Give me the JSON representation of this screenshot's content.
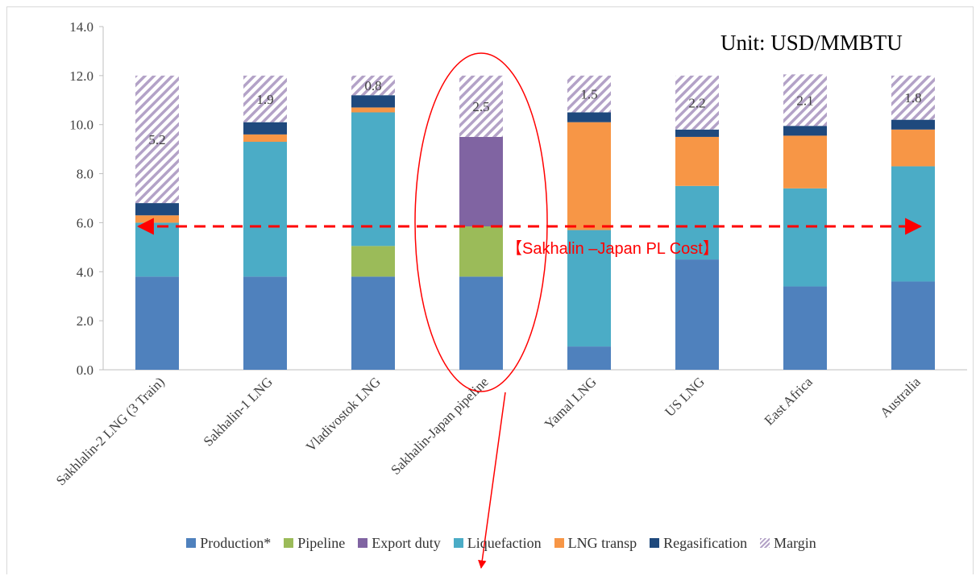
{
  "chart_data": {
    "type": "bar",
    "stacked": true,
    "categories": [
      "Sakhlalin-2 LNG (3 Train)",
      "Sakhalin-1 LNG",
      "Vladivostok LNG",
      "Sakhalin-Japan pipeline",
      "Yamal LNG",
      "US LNG",
      "East Africa",
      "Australia"
    ],
    "series": [
      {
        "name": "Production*",
        "color": "#4f81bd",
        "values": [
          3.8,
          3.8,
          3.8,
          3.8,
          0.95,
          4.5,
          3.4,
          3.6
        ]
      },
      {
        "name": "Pipeline",
        "color": "#9bbb59",
        "values": [
          0,
          0,
          1.25,
          2.05,
          0,
          0,
          0,
          0
        ]
      },
      {
        "name": "Export duty",
        "color": "#8064a2",
        "values": [
          0,
          0,
          0,
          3.65,
          0,
          0,
          0,
          0
        ]
      },
      {
        "name": "Liquefaction",
        "color": "#4bacc6",
        "values": [
          2.2,
          5.5,
          5.45,
          0,
          4.75,
          3.0,
          4.0,
          4.7
        ]
      },
      {
        "name": "LNG transp",
        "color": "#f79646",
        "values": [
          0.3,
          0.3,
          0.2,
          0,
          4.4,
          2.0,
          2.15,
          1.5
        ]
      },
      {
        "name": "Regasification",
        "color": "#1f497d",
        "values": [
          0.5,
          0.5,
          0.5,
          0,
          0.4,
          0.3,
          0.4,
          0.4
        ]
      },
      {
        "name": "Margin",
        "color": "#b3a2c7",
        "pattern": "diagonal-hatch",
        "values": [
          5.2,
          1.9,
          0.8,
          2.5,
          1.5,
          2.2,
          2.1,
          1.8
        ]
      }
    ],
    "data_labels": {
      "series": "Margin",
      "labels": [
        "5.2",
        "1.9",
        "0.8",
        "2.5",
        "1.5",
        "2.2",
        "2.1",
        "1.8"
      ]
    },
    "ylim": [
      0,
      14
    ],
    "yticks": [
      "0.0",
      "2.0",
      "4.0",
      "6.0",
      "8.0",
      "10.0",
      "12.0",
      "14.0"
    ],
    "grid": false,
    "legend": "bottom",
    "title": "",
    "xlabel": "",
    "ylabel": "",
    "reference_line": {
      "value": 5.85,
      "label": "【Sakhalin –Japan PL Cost】",
      "color": "#ff0000",
      "style": "dashed double-arrow"
    },
    "highlight": {
      "category": "Sakhalin-Japan pipeline",
      "shape": "ellipse",
      "color": "#ff0000",
      "arrow": "down"
    }
  },
  "annotations": {
    "unit": "Unit: USD/MMBTU",
    "pl_cost_label": "【Sakhalin –Japan PL Cost】"
  }
}
